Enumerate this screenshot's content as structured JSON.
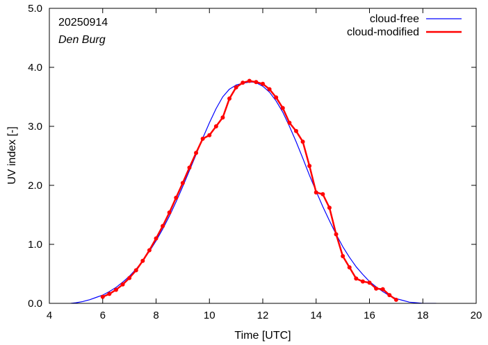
{
  "chart_data": {
    "type": "line",
    "annotations": {
      "date": "20250914",
      "location": "Den Burg"
    },
    "xlabel": "Time  [UTC]",
    "ylabel": "UV index  [-]",
    "xlim": [
      4,
      20
    ],
    "ylim": [
      0,
      5
    ],
    "x_ticks": [
      "4",
      "6",
      "8",
      "10",
      "12",
      "14",
      "16",
      "18",
      "20"
    ],
    "y_ticks": [
      "0.0",
      "1.0",
      "2.0",
      "3.0",
      "4.0",
      "5.0"
    ],
    "grid": false,
    "legend_position": "top-right",
    "series": [
      {
        "name": "cloud-free",
        "color": "#0000ff",
        "style": "line",
        "x": [
          4.8,
          5.0,
          5.25,
          5.5,
          5.75,
          6.0,
          6.25,
          6.5,
          6.75,
          7.0,
          7.25,
          7.5,
          7.75,
          8.0,
          8.25,
          8.5,
          8.75,
          9.0,
          9.25,
          9.5,
          9.75,
          10.0,
          10.25,
          10.5,
          10.75,
          11.0,
          11.25,
          11.5,
          11.62,
          11.75,
          12.0,
          12.25,
          12.5,
          12.75,
          13.0,
          13.25,
          13.5,
          13.75,
          14.0,
          14.25,
          14.5,
          14.75,
          15.0,
          15.25,
          15.5,
          15.75,
          16.0,
          16.25,
          16.5,
          16.75,
          17.0,
          17.25,
          17.5,
          17.75,
          18.0,
          18.25,
          18.5
        ],
        "y": [
          0.0,
          0.01,
          0.03,
          0.06,
          0.1,
          0.14,
          0.2,
          0.27,
          0.36,
          0.46,
          0.58,
          0.72,
          0.88,
          1.06,
          1.26,
          1.48,
          1.72,
          1.98,
          2.25,
          2.52,
          2.8,
          3.06,
          3.3,
          3.5,
          3.63,
          3.7,
          3.73,
          3.75,
          3.75,
          3.74,
          3.68,
          3.58,
          3.43,
          3.24,
          3.0,
          2.74,
          2.46,
          2.17,
          1.9,
          1.64,
          1.4,
          1.17,
          0.96,
          0.78,
          0.62,
          0.49,
          0.37,
          0.28,
          0.2,
          0.13,
          0.08,
          0.05,
          0.02,
          0.01,
          0.0,
          0.0,
          0.0
        ]
      },
      {
        "name": "cloud-modified",
        "color": "#ff0000",
        "style": "linespoints",
        "x": [
          6.0,
          6.25,
          6.5,
          6.75,
          7.0,
          7.25,
          7.5,
          7.75,
          8.0,
          8.25,
          8.5,
          8.75,
          9.0,
          9.25,
          9.5,
          9.75,
          10.0,
          10.25,
          10.5,
          10.75,
          11.0,
          11.25,
          11.5,
          11.75,
          12.0,
          12.25,
          12.5,
          12.75,
          13.0,
          13.25,
          13.5,
          13.75,
          14.0,
          14.25,
          14.5,
          14.75,
          15.0,
          15.25,
          15.5,
          15.75,
          16.0,
          16.25,
          16.5,
          16.75,
          17.0
        ],
        "y": [
          0.11,
          0.16,
          0.23,
          0.32,
          0.43,
          0.56,
          0.72,
          0.9,
          1.1,
          1.31,
          1.54,
          1.79,
          2.04,
          2.3,
          2.55,
          2.79,
          2.85,
          3.0,
          3.15,
          3.47,
          3.66,
          3.74,
          3.77,
          3.75,
          3.72,
          3.63,
          3.49,
          3.31,
          3.06,
          2.92,
          2.74,
          2.33,
          1.88,
          1.85,
          1.62,
          1.17,
          0.8,
          0.61,
          0.42,
          0.37,
          0.35,
          0.25,
          0.24,
          0.14,
          0.06
        ]
      }
    ]
  }
}
